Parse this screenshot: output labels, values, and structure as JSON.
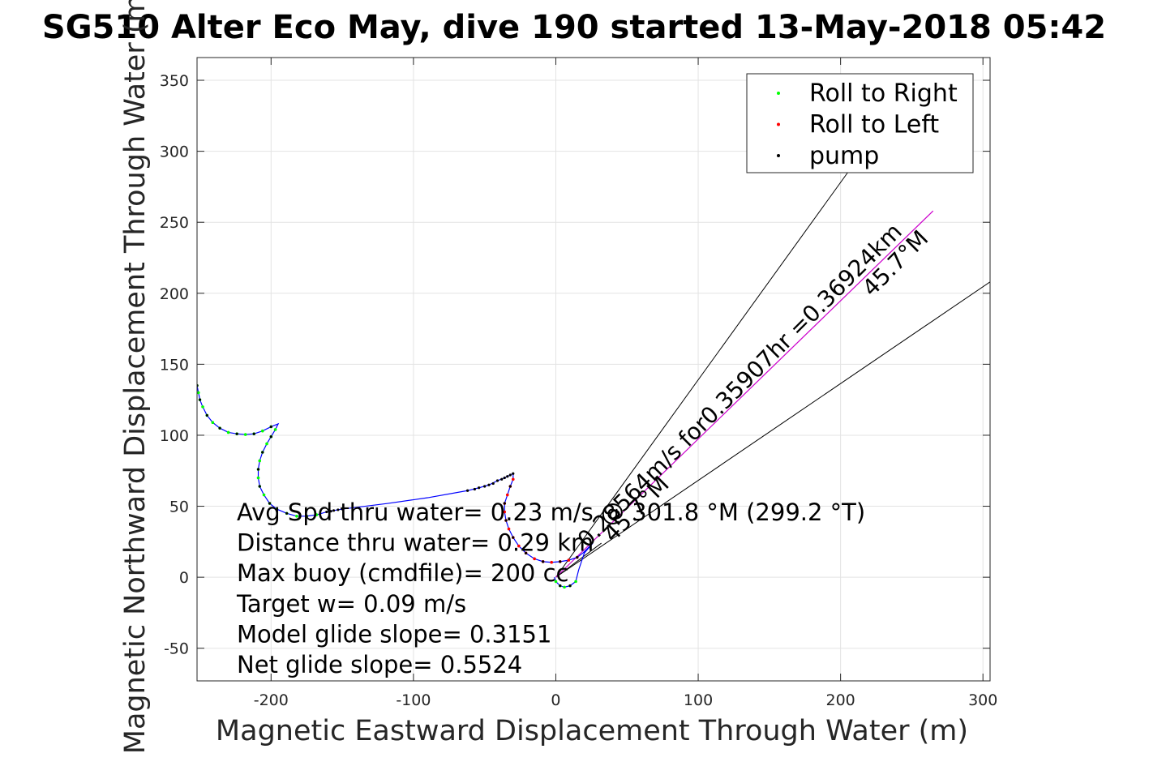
{
  "chart_data": {
    "type": "scatter",
    "title": "SG510 Alter Eco May, dive 190 started 13-May-2018 05:42",
    "xlabel": "Magnetic Eastward Displacement Through Water (m)",
    "ylabel": "Magnetic Northward Displacement Through Water (m)",
    "xlim": [
      -252,
      305
    ],
    "ylim": [
      -73,
      366
    ],
    "xticks": [
      -200,
      -100,
      0,
      100,
      200,
      300
    ],
    "xtick_labels": [
      "-200",
      "-100",
      "0",
      "100",
      "200",
      "300"
    ],
    "yticks": [
      -50,
      0,
      50,
      100,
      150,
      200,
      250,
      300,
      350
    ],
    "ytick_labels": [
      "-50",
      "0",
      "50",
      "100",
      "150",
      "200",
      "250",
      "300",
      "350"
    ],
    "grid": true,
    "legend": {
      "placement": "top-right",
      "entries": [
        {
          "label": "Roll to Right",
          "color": "#00ff00"
        },
        {
          "label": "Roll to Left",
          "color": "#ff0000"
        },
        {
          "label": "pump",
          "color": "#000000"
        }
      ]
    },
    "track_color": "#0000ff",
    "track": [
      [
        -252,
        135
      ],
      [
        -251,
        130
      ],
      [
        -250,
        125
      ],
      [
        -248,
        120
      ],
      [
        -245,
        114
      ],
      [
        -241,
        109
      ],
      [
        -236,
        105
      ],
      [
        -230,
        102
      ],
      [
        -224,
        101
      ],
      [
        -218,
        100.5
      ],
      [
        -212,
        101
      ],
      [
        -206,
        103
      ],
      [
        -200,
        106
      ],
      [
        -195,
        108
      ],
      [
        -197,
        104
      ],
      [
        -200,
        99
      ],
      [
        -203,
        94
      ],
      [
        -206,
        88
      ],
      [
        -208,
        82
      ],
      [
        -209,
        76
      ],
      [
        -209,
        70
      ],
      [
        -208,
        64
      ],
      [
        -205,
        58
      ],
      [
        -201,
        52
      ],
      [
        -196,
        48
      ],
      [
        -189,
        45
      ],
      [
        -182,
        43
      ],
      [
        -175,
        43
      ],
      [
        -168,
        44
      ],
      [
        -161,
        46
      ],
      [
        -156,
        47
      ],
      [
        -150,
        48
      ],
      [
        -118,
        52
      ],
      [
        -90,
        56
      ],
      [
        -62,
        61
      ],
      [
        -54,
        63
      ],
      [
        -47,
        65
      ],
      [
        -41,
        68
      ],
      [
        -36,
        70
      ],
      [
        -32,
        72
      ],
      [
        -30,
        73
      ],
      [
        -30,
        69
      ],
      [
        -32,
        64
      ],
      [
        -34,
        58
      ],
      [
        -36,
        52
      ],
      [
        -36,
        46
      ],
      [
        -35,
        40
      ],
      [
        -33,
        34
      ],
      [
        -30,
        28
      ],
      [
        -26,
        22
      ],
      [
        -21,
        17
      ],
      [
        -15,
        13
      ],
      [
        -9,
        11
      ],
      [
        -3,
        10.5
      ],
      [
        3,
        11
      ],
      [
        9,
        12
      ],
      [
        15,
        14
      ],
      [
        19,
        17
      ],
      [
        23,
        21
      ],
      [
        26,
        24
      ],
      [
        20,
        17
      ],
      [
        16,
        5
      ],
      [
        14,
        -3
      ],
      [
        10,
        -6
      ],
      [
        6,
        -7
      ],
      [
        3,
        -6
      ],
      [
        0,
        -3
      ],
      [
        -1,
        0
      ]
    ],
    "roll_right_points": [
      [
        -252,
        135
      ],
      [
        -251,
        130
      ],
      [
        -250,
        125
      ],
      [
        -248,
        120
      ],
      [
        -245,
        114
      ],
      [
        -241,
        109
      ],
      [
        -236,
        105
      ],
      [
        -230,
        102
      ],
      [
        -224,
        101
      ],
      [
        -218,
        100.5
      ],
      [
        -212,
        101
      ],
      [
        -206,
        103
      ],
      [
        -200,
        106
      ],
      [
        -197,
        104
      ],
      [
        -200,
        99
      ],
      [
        -203,
        94
      ],
      [
        -206,
        88
      ],
      [
        -208,
        82
      ],
      [
        -209,
        76
      ],
      [
        -209,
        70
      ],
      [
        -208,
        64
      ],
      [
        -205,
        58
      ],
      [
        -201,
        52
      ],
      [
        -196,
        48
      ],
      [
        -189,
        45
      ],
      [
        -182,
        43
      ],
      [
        -175,
        43
      ],
      [
        -168,
        44
      ],
      [
        14,
        -3
      ],
      [
        10,
        -6
      ],
      [
        6,
        -7
      ],
      [
        3,
        -6
      ],
      [
        0,
        -3
      ]
    ],
    "roll_left_points": [
      [
        -30,
        69
      ],
      [
        -32,
        64
      ],
      [
        -34,
        58
      ],
      [
        -36,
        52
      ],
      [
        -36,
        46
      ],
      [
        -35,
        40
      ],
      [
        -33,
        34
      ],
      [
        -30,
        28
      ],
      [
        -26,
        22
      ],
      [
        -21,
        17
      ],
      [
        -15,
        13
      ],
      [
        -9,
        11
      ],
      [
        -3,
        10.5
      ],
      [
        3,
        11
      ],
      [
        9,
        12
      ],
      [
        15,
        14
      ]
    ],
    "pump_points": [
      [
        -161,
        46
      ],
      [
        -158,
        46.5
      ],
      [
        -156,
        47
      ],
      [
        -153,
        47.5
      ],
      [
        -150,
        48
      ],
      [
        -62,
        61
      ],
      [
        -57,
        62
      ],
      [
        -54,
        63
      ],
      [
        -50,
        64
      ],
      [
        -47,
        65
      ],
      [
        -44,
        66
      ],
      [
        -41,
        68
      ],
      [
        -38,
        69
      ],
      [
        -36,
        70
      ],
      [
        -34,
        71
      ],
      [
        -32,
        72
      ],
      [
        -30,
        73
      ],
      [
        -252,
        135
      ],
      [
        -250,
        125
      ],
      [
        -245,
        114
      ],
      [
        -236,
        105
      ],
      [
        -224,
        101
      ],
      [
        -212,
        101
      ],
      [
        -200,
        106
      ],
      [
        -200,
        99
      ],
      [
        -206,
        88
      ],
      [
        -209,
        76
      ],
      [
        -208,
        64
      ],
      [
        -201,
        52
      ],
      [
        -189,
        45
      ],
      [
        -175,
        43
      ],
      [
        -32,
        64
      ],
      [
        -36,
        52
      ],
      [
        -35,
        40
      ],
      [
        -30,
        28
      ],
      [
        -21,
        17
      ],
      [
        -9,
        11
      ],
      [
        3,
        11
      ],
      [
        15,
        14
      ],
      [
        10,
        -6
      ],
      [
        3,
        -6
      ]
    ],
    "cone_lines": [
      {
        "from": [
          0,
          0
        ],
        "to": [
          205,
          285
        ],
        "color": "#000000"
      },
      {
        "from": [
          0,
          0
        ],
        "to": [
          305,
          208
        ],
        "color": "#000000"
      },
      {
        "from": [
          0,
          0
        ],
        "to": [
          32,
          24
        ],
        "color": "#000000"
      }
    ],
    "current_line": {
      "from": [
        0,
        0
      ],
      "to": [
        265,
        258
      ],
      "color": "#cc00cc"
    },
    "annotations": [
      {
        "text": "0.28564m/s for0.35907hr =0.36924km",
        "x": 22,
        "y": 20,
        "rotation": -45
      },
      {
        "text": "45.7°M",
        "x": 222,
        "y": 197,
        "rotation": -45
      },
      {
        "text": "45.7°M",
        "x": 40,
        "y": 24,
        "rotation": -45
      }
    ],
    "stats": [
      "Avg Spd thru water=  0.23 m/s @ 301.8 °M (299.2 °T)",
      "Distance thru water=  0.29 km",
      "Max buoy (cmdfile)= 200 cc",
      "Target w= 0.09 m/s",
      "Model glide slope= 0.3151",
      "Net glide slope= 0.5524"
    ]
  }
}
